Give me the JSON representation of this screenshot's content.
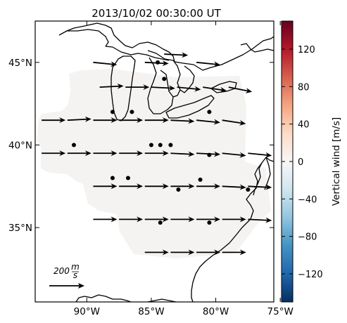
{
  "title": "2013/10/02 00:30:00 UT",
  "map": {
    "x_axis_ticks": [
      "90°W",
      "85°W",
      "80°W",
      "75°W"
    ],
    "x_axis_values": [
      -90,
      -85,
      -80,
      -75
    ],
    "y_axis_ticks": [
      "45°N",
      "40°N",
      "35°N"
    ],
    "y_axis_values": [
      45,
      40,
      35
    ],
    "lon_range": [
      -94.0,
      -75.5
    ],
    "lat_range": [
      30.5,
      47.5
    ],
    "background_fill": "#f5f3f1",
    "coastline_color": "#000000"
  },
  "scale_arrow": {
    "value": "200",
    "unit_num": "m",
    "unit_den": "s",
    "speed_mps": 200
  },
  "colorbar": {
    "label": "Vertical wind [m/s]",
    "ticks": [
      "−120",
      "−80",
      "−40",
      "0",
      "40",
      "80",
      "120"
    ],
    "tick_values": [
      -120,
      -80,
      -40,
      0,
      40,
      80,
      120
    ],
    "range": [
      -150,
      150
    ],
    "colormap": "RdBu_r",
    "stops": [
      "#053061",
      "#2166ac",
      "#4393c3",
      "#92c5de",
      "#d1e5f0",
      "#f7f7f7",
      "#fddbc7",
      "#f4a582",
      "#d6604d",
      "#b2182b",
      "#67001f"
    ]
  },
  "wind_vectors": [
    {
      "lon": -89.5,
      "lat": 45.0,
      "u": 1.0,
      "v": -0.1
    },
    {
      "lon": -85.5,
      "lat": 45.0,
      "u": 1.0,
      "v": -0.05
    },
    {
      "lon": -84.0,
      "lat": 45.5,
      "u": 1.0,
      "v": -0.05
    },
    {
      "lon": -81.5,
      "lat": 45.0,
      "u": 1.0,
      "v": -0.1
    },
    {
      "lon": -89.0,
      "lat": 43.5,
      "u": 1.0,
      "v": 0.05
    },
    {
      "lon": -87.0,
      "lat": 43.5,
      "u": 1.0,
      "v": 0.0
    },
    {
      "lon": -85.0,
      "lat": 43.5,
      "u": 1.0,
      "v": -0.05
    },
    {
      "lon": -83.0,
      "lat": 43.5,
      "u": 1.0,
      "v": -0.1
    },
    {
      "lon": -81.0,
      "lat": 43.5,
      "u": 1.0,
      "v": -0.15
    },
    {
      "lon": -79.0,
      "lat": 43.5,
      "u": 1.0,
      "v": -0.2
    },
    {
      "lon": -93.5,
      "lat": 41.5,
      "u": 1.0,
      "v": 0.0
    },
    {
      "lon": -91.5,
      "lat": 41.5,
      "u": 1.0,
      "v": 0.05
    },
    {
      "lon": -89.5,
      "lat": 41.5,
      "u": 1.0,
      "v": 0.0
    },
    {
      "lon": -87.5,
      "lat": 41.5,
      "u": 1.0,
      "v": 0.0
    },
    {
      "lon": -85.5,
      "lat": 41.5,
      "u": 1.0,
      "v": 0.0
    },
    {
      "lon": -83.5,
      "lat": 41.5,
      "u": 1.0,
      "v": -0.05
    },
    {
      "lon": -81.5,
      "lat": 41.5,
      "u": 1.0,
      "v": -0.1
    },
    {
      "lon": -79.5,
      "lat": 41.5,
      "u": 1.0,
      "v": -0.15
    },
    {
      "lon": -93.5,
      "lat": 39.5,
      "u": 1.0,
      "v": 0.0
    },
    {
      "lon": -91.5,
      "lat": 39.5,
      "u": 1.0,
      "v": 0.0
    },
    {
      "lon": -89.5,
      "lat": 39.5,
      "u": 1.0,
      "v": 0.0
    },
    {
      "lon": -87.5,
      "lat": 39.5,
      "u": 1.0,
      "v": 0.0
    },
    {
      "lon": -85.5,
      "lat": 39.5,
      "u": 1.0,
      "v": 0.0
    },
    {
      "lon": -83.5,
      "lat": 39.5,
      "u": 1.0,
      "v": -0.05
    },
    {
      "lon": -81.5,
      "lat": 39.5,
      "u": 1.0,
      "v": -0.05
    },
    {
      "lon": -79.5,
      "lat": 39.5,
      "u": 1.0,
      "v": -0.1
    },
    {
      "lon": -77.5,
      "lat": 39.5,
      "u": 1.0,
      "v": -0.1
    },
    {
      "lon": -89.5,
      "lat": 37.5,
      "u": 1.0,
      "v": 0.0
    },
    {
      "lon": -87.5,
      "lat": 37.5,
      "u": 1.0,
      "v": 0.0
    },
    {
      "lon": -85.5,
      "lat": 37.5,
      "u": 1.0,
      "v": 0.0
    },
    {
      "lon": -83.5,
      "lat": 37.5,
      "u": 1.0,
      "v": 0.0
    },
    {
      "lon": -81.5,
      "lat": 37.5,
      "u": 1.0,
      "v": 0.0
    },
    {
      "lon": -79.5,
      "lat": 37.5,
      "u": 1.0,
      "v": -0.05
    },
    {
      "lon": -77.5,
      "lat": 37.5,
      "u": 1.0,
      "v": -0.05
    },
    {
      "lon": -89.5,
      "lat": 35.5,
      "u": 1.0,
      "v": 0.0
    },
    {
      "lon": -87.5,
      "lat": 35.5,
      "u": 1.0,
      "v": 0.0
    },
    {
      "lon": -85.5,
      "lat": 35.5,
      "u": 1.0,
      "v": 0.0
    },
    {
      "lon": -83.5,
      "lat": 35.5,
      "u": 1.0,
      "v": 0.0
    },
    {
      "lon": -81.5,
      "lat": 35.5,
      "u": 1.0,
      "v": 0.0
    },
    {
      "lon": -79.5,
      "lat": 35.5,
      "u": 1.0,
      "v": 0.0
    },
    {
      "lon": -77.5,
      "lat": 35.5,
      "u": 1.0,
      "v": -0.05
    },
    {
      "lon": -85.5,
      "lat": 33.5,
      "u": 1.0,
      "v": 0.0
    },
    {
      "lon": -83.5,
      "lat": 33.5,
      "u": 1.0,
      "v": 0.0
    },
    {
      "lon": -81.5,
      "lat": 33.5,
      "u": 1.0,
      "v": 0.0
    },
    {
      "lon": -79.5,
      "lat": 33.5,
      "u": 1.0,
      "v": 0.0
    }
  ],
  "stations": [
    {
      "lon": -84.5,
      "lat": 45.0
    },
    {
      "lon": -84.0,
      "lat": 44.0
    },
    {
      "lon": -88.0,
      "lat": 42.0
    },
    {
      "lon": -86.5,
      "lat": 42.0
    },
    {
      "lon": -80.5,
      "lat": 42.0
    },
    {
      "lon": -91.0,
      "lat": 40.0
    },
    {
      "lon": -85.0,
      "lat": 40.0
    },
    {
      "lon": -84.3,
      "lat": 40.0
    },
    {
      "lon": -83.5,
      "lat": 40.0
    },
    {
      "lon": -80.5,
      "lat": 39.4
    },
    {
      "lon": -88.0,
      "lat": 38.0
    },
    {
      "lon": -86.8,
      "lat": 38.0
    },
    {
      "lon": -81.2,
      "lat": 37.9
    },
    {
      "lon": -82.9,
      "lat": 37.3
    },
    {
      "lon": -77.5,
      "lat": 37.3
    },
    {
      "lon": -84.3,
      "lat": 35.3
    },
    {
      "lon": -80.5,
      "lat": 35.3
    }
  ]
}
